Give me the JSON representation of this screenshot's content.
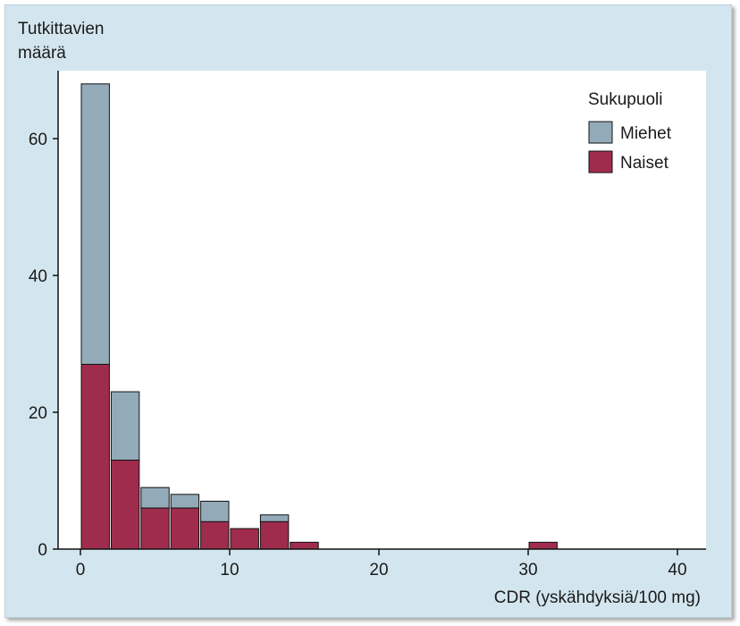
{
  "chart_data": {
    "type": "bar",
    "stacked": true,
    "title": "",
    "ylabel_lines": [
      "Tutkittavien",
      "määrä"
    ],
    "xlabel": "CDR (yskähdyksiä/100 mg)",
    "xlim": [
      -2,
      42
    ],
    "ylim": [
      0,
      70
    ],
    "xticks": [
      0,
      10,
      20,
      30,
      40
    ],
    "yticks": [
      0,
      20,
      40,
      60
    ],
    "bin_width": 2,
    "bins": [
      {
        "start": 0,
        "naiset": 27,
        "miehet": 41
      },
      {
        "start": 2,
        "naiset": 13,
        "miehet": 10
      },
      {
        "start": 4,
        "naiset": 6,
        "miehet": 3
      },
      {
        "start": 6,
        "naiset": 6,
        "miehet": 2
      },
      {
        "start": 8,
        "naiset": 4,
        "miehet": 3
      },
      {
        "start": 10,
        "naiset": 3,
        "miehet": 0
      },
      {
        "start": 12,
        "naiset": 4,
        "miehet": 1
      },
      {
        "start": 14,
        "naiset": 1,
        "miehet": 0
      },
      {
        "start": 30,
        "naiset": 1,
        "miehet": 0
      }
    ],
    "legend": {
      "title": "Sukupuoli",
      "position": "top-right",
      "items": [
        {
          "key": "miehet",
          "label": "Miehet",
          "color": "#93abb9"
        },
        {
          "key": "naiset",
          "label": "Naiset",
          "color": "#a02c4d"
        }
      ]
    },
    "grid": false
  },
  "colors": {
    "background": "#d3e6ef",
    "plot_area": "#ffffff",
    "miehet": "#93abb9",
    "naiset": "#a02c4d"
  }
}
